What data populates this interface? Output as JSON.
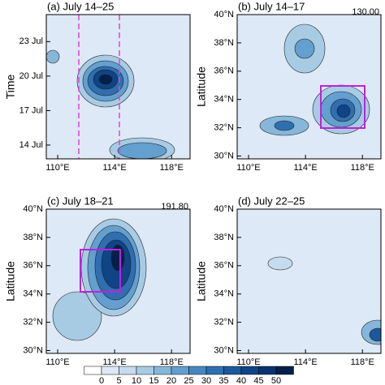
{
  "chart_data": [
    {
      "type": "contour",
      "title": "(a) July 14–25",
      "ylabel": "Time",
      "xlim": [
        109.2,
        119.3
      ],
      "xticks": [
        {
          "value": 110,
          "label": "110°E"
        },
        {
          "value": 114,
          "label": "114°E"
        },
        {
          "value": 118,
          "label": "118°E"
        }
      ],
      "ylim": [
        12.8,
        25.35
      ],
      "yticks": [
        {
          "value": 14,
          "label": "14 Jul"
        },
        {
          "value": 17,
          "label": "17 Jul"
        },
        {
          "value": 20,
          "label": "20 Jul"
        },
        {
          "value": 23,
          "label": "23 Jul"
        }
      ]
    },
    {
      "type": "contour",
      "title": "(b) July 14–17",
      "ylabel": "Latitude",
      "annotation": "130.00",
      "xlim": [
        109.2,
        119.3
      ],
      "xticks": [
        {
          "value": 110,
          "label": "110°E"
        },
        {
          "value": 114,
          "label": "114°E"
        },
        {
          "value": 118,
          "label": "118°E"
        }
      ],
      "ylim": [
        29.8,
        40
      ],
      "yticks": [
        {
          "value": 30,
          "label": "30°N"
        },
        {
          "value": 32,
          "label": "32°N"
        },
        {
          "value": 34,
          "label": "34°N"
        },
        {
          "value": 36,
          "label": "36°N"
        },
        {
          "value": 38,
          "label": "38°N"
        },
        {
          "value": 40,
          "label": "40°N"
        }
      ]
    },
    {
      "type": "contour",
      "title": "(c) July 18–21",
      "ylabel": "Latitude",
      "annotation": "191.80",
      "xlim": [
        109.2,
        119.3
      ],
      "xticks": [
        {
          "value": 110,
          "label": "110°E"
        },
        {
          "value": 114,
          "label": "114°E"
        },
        {
          "value": 118,
          "label": "118°E"
        }
      ],
      "ylim": [
        29.8,
        40
      ],
      "yticks": [
        {
          "value": 30,
          "label": "30°N"
        },
        {
          "value": 32,
          "label": "32°N"
        },
        {
          "value": 34,
          "label": "34°N"
        },
        {
          "value": 36,
          "label": "36°N"
        },
        {
          "value": 38,
          "label": "38°N"
        },
        {
          "value": 40,
          "label": "40°N"
        }
      ]
    },
    {
      "type": "contour",
      "title": "(d) July 22–25",
      "ylabel": "Latitude",
      "xlim": [
        109.2,
        119.3
      ],
      "xticks": [
        {
          "value": 110,
          "label": "110°E"
        },
        {
          "value": 114,
          "label": "114°E"
        },
        {
          "value": 118,
          "label": "118°E"
        }
      ],
      "ylim": [
        29.8,
        40
      ],
      "yticks": [
        {
          "value": 30,
          "label": "30°N"
        },
        {
          "value": 32,
          "label": "32°N"
        },
        {
          "value": 34,
          "label": "34°N"
        },
        {
          "value": 36,
          "label": "36°N"
        },
        {
          "value": 38,
          "label": "38°N"
        },
        {
          "value": 40,
          "label": "40°N"
        }
      ]
    }
  ],
  "colorbar": {
    "ticks": [
      0,
      5,
      10,
      15,
      20,
      25,
      30,
      35,
      40,
      45,
      50
    ],
    "colors": [
      "#ffffff",
      "#dde9f6",
      "#c6dbef",
      "#a8cbe4",
      "#86b6da",
      "#639fcf",
      "#4787c0",
      "#2f6fb0",
      "#1c589c",
      "#0f4486",
      "#08336f",
      "#041f4a"
    ]
  }
}
